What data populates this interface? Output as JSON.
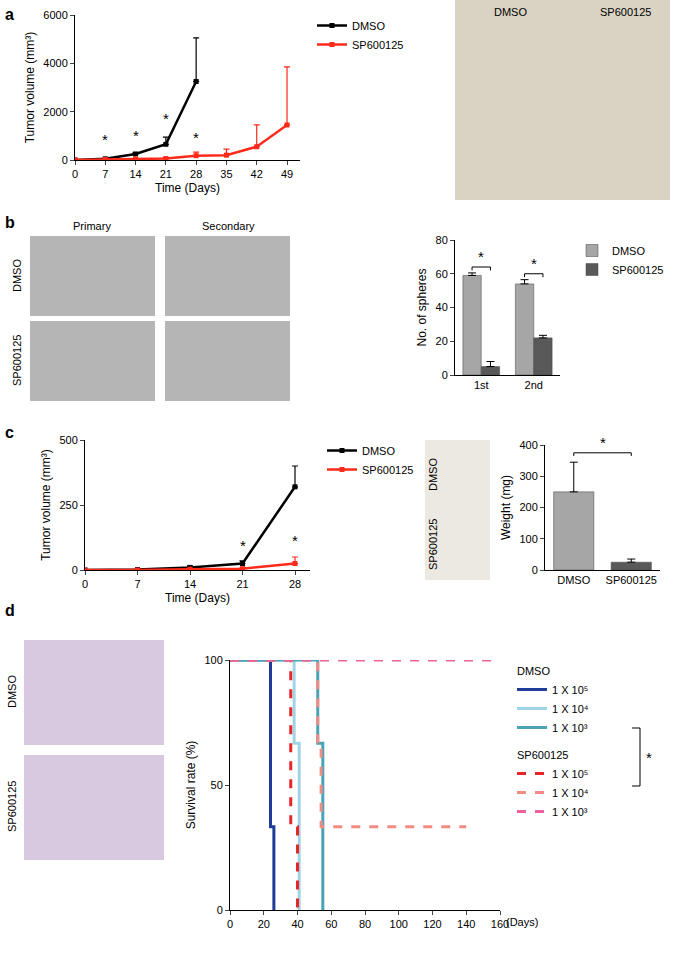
{
  "images": [
    {
      "panel": "a",
      "labels": [
        "DMSO",
        "SP600125"
      ]
    },
    {
      "panel": "b",
      "columns": [
        "Primary",
        "Secondary"
      ],
      "rows": [
        "DMSO",
        "SP600125"
      ]
    },
    {
      "panel": "c",
      "labels": [
        "DMSO",
        "SP600125"
      ]
    },
    {
      "panel": "d",
      "labels": [
        "DMSO",
        "SP600125"
      ]
    }
  ],
  "chart_data": [
    {
      "type": "line",
      "x": [
        0,
        7,
        14,
        21,
        28,
        35,
        42,
        49
      ],
      "series": [
        {
          "name": "DMSO",
          "color": "#000000",
          "marker": "square",
          "values": [
            0,
            50,
            250,
            650,
            3250,
            null,
            null,
            null
          ],
          "errors": [
            0,
            20,
            60,
            300,
            1800,
            null,
            null,
            null
          ]
        },
        {
          "name": "SP600125",
          "color": "#ff2a1a",
          "marker": "square",
          "values": [
            0,
            20,
            40,
            60,
            180,
            200,
            550,
            1450
          ],
          "errors": [
            0,
            10,
            20,
            40,
            150,
            250,
            900,
            2400
          ]
        }
      ],
      "xlim": [
        0,
        52
      ],
      "xticks": [
        0,
        7,
        14,
        21,
        28,
        35,
        42,
        49
      ],
      "ylim": [
        0,
        6000
      ],
      "yticks": [
        0,
        2000,
        4000,
        6000
      ],
      "x_label": "Time (Days)",
      "y_label": "Tumor volume (mm³)",
      "legend": "top right",
      "annotations": [
        {
          "text": "*",
          "x": 7,
          "y": 400
        },
        {
          "text": "*",
          "x": 14,
          "y": 600
        },
        {
          "text": "*",
          "x": 21,
          "y": 1300
        },
        {
          "text": "*",
          "x": 28,
          "y": 500
        }
      ]
    },
    {
      "type": "bar",
      "categories": [
        "1st",
        "2nd"
      ],
      "series": [
        {
          "name": "DMSO",
          "color": "#a6a6a6",
          "values": [
            59,
            54
          ],
          "errors": [
            1.5,
            2.5
          ]
        },
        {
          "name": "SP600125",
          "color": "#595959",
          "values": [
            5,
            22
          ],
          "errors": [
            3,
            1.5
          ]
        }
      ],
      "ylim": [
        0,
        80
      ],
      "yticks": [
        0,
        20,
        40,
        60,
        80
      ],
      "y_label": "No. of spheres",
      "legend": "top right",
      "annotations": [
        {
          "text": "*",
          "x": "1st",
          "y": 64
        },
        {
          "text": "*",
          "x": "2nd",
          "y": 60
        }
      ]
    },
    {
      "type": "line",
      "x": [
        0,
        7,
        14,
        21,
        28
      ],
      "series": [
        {
          "name": "DMSO",
          "color": "#000000",
          "marker": "square",
          "values": [
            0,
            2,
            10,
            25,
            320
          ],
          "errors": [
            0,
            1,
            5,
            10,
            80
          ]
        },
        {
          "name": "SP600125",
          "color": "#ff2a1a",
          "marker": "square",
          "values": [
            0,
            0,
            3,
            5,
            25
          ],
          "errors": [
            0,
            0,
            2,
            3,
            25
          ]
        }
      ],
      "xlim": [
        0,
        30
      ],
      "xticks": [
        0,
        7,
        14,
        21,
        28
      ],
      "ylim": [
        0,
        500
      ],
      "yticks": [
        0,
        250,
        500
      ],
      "x_label": "Time (Days)",
      "y_label": "Tumor volume (mm³)",
      "legend": "top right",
      "annotations": [
        {
          "text": "*",
          "x": 21,
          "y": 55
        },
        {
          "text": "*",
          "x": 28,
          "y": 75
        }
      ]
    },
    {
      "type": "bar",
      "categories": [
        "DMSO",
        "SP600125"
      ],
      "values": [
        250,
        25
      ],
      "errors": [
        95,
        10
      ],
      "colors": [
        "#a6a6a6",
        "#595959"
      ],
      "ylim": [
        0,
        400
      ],
      "yticks": [
        0,
        100,
        200,
        300,
        400
      ],
      "y_label": "Weight (mg)",
      "annotations": [
        {
          "text": "*",
          "y": 375
        }
      ]
    },
    {
      "type": "step",
      "xlim": [
        0,
        160
      ],
      "xticks": [
        0,
        20,
        40,
        60,
        80,
        100,
        120,
        140,
        160
      ],
      "ylim": [
        0,
        100
      ],
      "yticks": [
        0,
        50,
        100
      ],
      "x_label": "(Days)",
      "y_label": "Survival rate (%)",
      "legend": "top right",
      "groups": [
        {
          "name": "DMSO",
          "series": [
            {
              "name": "1 X 10⁵",
              "color": "#1f3c99",
              "line_style": "solid",
              "x": [
                0,
                24,
                26
              ],
              "values": [
                100,
                33.3,
                0
              ]
            },
            {
              "name": "1 X 10⁴",
              "color": "#9fd3e6",
              "line_style": "solid",
              "x": [
                0,
                38,
                41
              ],
              "values": [
                100,
                66.7,
                0
              ]
            },
            {
              "name": "1 X 10³",
              "color": "#4ba3b7",
              "line_style": "solid",
              "x": [
                0,
                52,
                55
              ],
              "values": [
                100,
                66.7,
                0
              ]
            }
          ]
        },
        {
          "name": "SP600125",
          "series": [
            {
              "name": "1 X 10⁵",
              "color": "#e8262a",
              "line_style": "dash",
              "x": [
                0,
                36,
                40
              ],
              "values": [
                100,
                33.3,
                0
              ]
            },
            {
              "name": "1 X 10⁴",
              "color": "#f28b82",
              "line_style": "dash",
              "x": [
                0,
                52,
                54,
                140
              ],
              "values": [
                100,
                66.7,
                33.3,
                33.3
              ]
            },
            {
              "name": "1 X 10³",
              "color": "#f0609e",
              "line_style": "dash",
              "x": [
                0,
                160
              ],
              "values": [
                100,
                100
              ]
            }
          ]
        }
      ],
      "annotations": [
        {
          "text": "*"
        }
      ]
    }
  ]
}
